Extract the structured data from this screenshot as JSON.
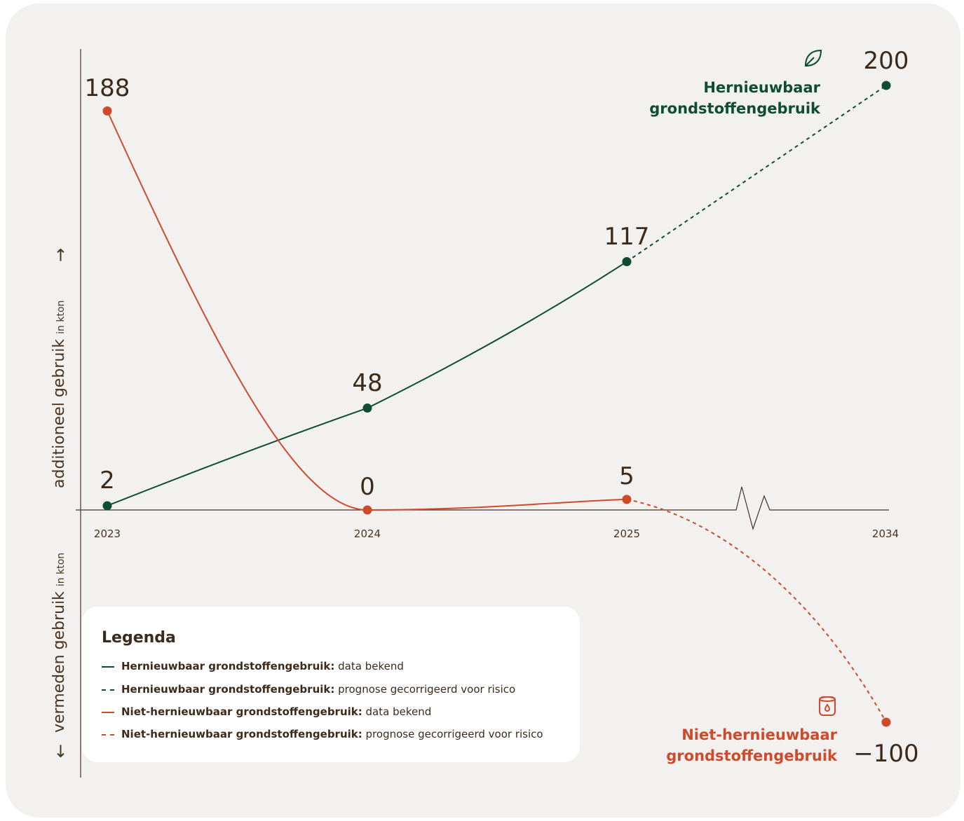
{
  "chart_data": {
    "type": "line",
    "x": [
      "2023",
      "2024",
      "2025",
      "2034"
    ],
    "ylabel_positive": "additioneel gebruik",
    "ylabel_negative": "vermeden gebruik",
    "ylabel_unit": "in kton",
    "arrow_up": "→",
    "arrow_down": "←",
    "series": [
      {
        "name": "Hernieuwbaar grondstoffengebruik",
        "color": "#0e4d32",
        "icon": "leaf-icon",
        "values": [
          2,
          48,
          117,
          200
        ],
        "labels": [
          "2",
          "48",
          "117",
          "200"
        ],
        "known_until": "2025",
        "forecast_from": "2025"
      },
      {
        "name": "Niet-hernieuwbaar grondstoffengebruik",
        "color": "#cf4a2b",
        "icon": "barrel-icon",
        "values": [
          188,
          0,
          5,
          -100
        ],
        "labels": [
          "188",
          "0",
          "5",
          "−100"
        ],
        "known_until": "2025",
        "forecast_from": "2025"
      }
    ]
  },
  "series_labels": {
    "renewable": "Hernieuwbaar grondstoffengebruik",
    "nonrenewable": "Niet-hernieuwbaar grondstoffengebruik"
  },
  "legend": {
    "title": "Legenda",
    "items": [
      {
        "bold": "Hernieuwbaar grondstoffengebruik:",
        "text": "data bekend",
        "color": "#0e4d32",
        "style": "solid"
      },
      {
        "bold": "Hernieuwbaar grondstoffengebruik:",
        "text": "prognose gecorrigeerd voor risico",
        "color": "#0e4d32",
        "style": "dashed"
      },
      {
        "bold": "Niet-hernieuwbaar grondstoffengebruik:",
        "text": "data bekend",
        "color": "#cf4a2b",
        "style": "solid"
      },
      {
        "bold": "Niet-hernieuwbaar grondstoffengebruik:",
        "text": "prognose gecorrigeerd voor risico",
        "color": "#cf4a2b",
        "style": "dashed"
      }
    ]
  }
}
